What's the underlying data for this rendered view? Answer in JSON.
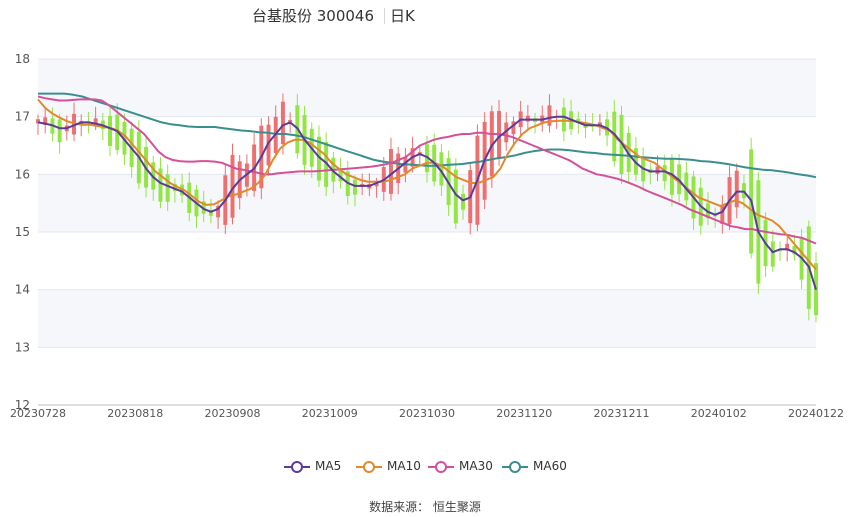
{
  "header": {
    "stock_name": "台基股份",
    "stock_code": "300046",
    "period_tab": "日K"
  },
  "source": {
    "label": "数据来源：",
    "name": "恒生聚源"
  },
  "colors": {
    "up": "#ee6f6f",
    "down": "#91e644",
    "ma5": "#5b3a9c",
    "ma10": "#e08a2c",
    "ma30": "#d5509a",
    "ma60": "#3a8e8e"
  },
  "chart_data": {
    "type": "candlestick",
    "ylim": [
      12,
      18
    ],
    "yticks": [
      12,
      13,
      14,
      15,
      16,
      17,
      18
    ],
    "xticks": [
      "20230728",
      "20230818",
      "20230908",
      "20231009",
      "20231030",
      "20231120",
      "20231211",
      "20240102",
      "20240122"
    ],
    "series": [
      {
        "name": "MA5",
        "key": "ma5",
        "values": [
          16.9,
          16.88,
          16.85,
          16.8,
          16.8,
          16.85,
          16.9,
          16.9,
          16.88,
          16.85,
          16.8,
          16.75,
          16.6,
          16.45,
          16.3,
          16.1,
          15.95,
          15.85,
          15.8,
          15.75,
          15.7,
          15.6,
          15.5,
          15.4,
          15.35,
          15.4,
          15.55,
          15.75,
          15.9,
          16.0,
          16.1,
          16.3,
          16.55,
          16.7,
          16.85,
          16.9,
          16.8,
          16.6,
          16.45,
          16.3,
          16.2,
          16.05,
          15.95,
          15.85,
          15.8,
          15.8,
          15.8,
          15.85,
          15.9,
          16.0,
          16.1,
          16.2,
          16.3,
          16.35,
          16.3,
          16.2,
          16.05,
          15.85,
          15.65,
          15.55,
          15.6,
          15.9,
          16.25,
          16.5,
          16.65,
          16.75,
          16.85,
          16.95,
          16.95,
          16.95,
          16.95,
          16.98,
          17.0,
          17.0,
          16.95,
          16.9,
          16.85,
          16.85,
          16.85,
          16.8,
          16.7,
          16.55,
          16.35,
          16.2,
          16.1,
          16.05,
          16.05,
          16.05,
          16.0,
          15.9,
          15.75,
          15.6,
          15.45,
          15.35,
          15.3,
          15.35,
          15.55,
          15.7,
          15.7,
          15.55,
          15.0,
          14.8,
          14.65,
          14.7,
          14.7,
          14.65,
          14.55,
          14.4,
          14.0
        ]
      },
      {
        "name": "MA10",
        "key": "ma10",
        "values": [
          17.3,
          17.15,
          17.05,
          16.98,
          16.92,
          16.88,
          16.86,
          16.86,
          16.84,
          16.82,
          16.8,
          16.75,
          16.65,
          16.5,
          16.35,
          16.2,
          16.05,
          15.95,
          15.85,
          15.78,
          15.72,
          15.62,
          15.52,
          15.47,
          15.48,
          15.55,
          15.62,
          15.65,
          15.7,
          15.75,
          15.85,
          16.0,
          16.25,
          16.45,
          16.55,
          16.6,
          16.6,
          16.55,
          16.45,
          16.35,
          16.2,
          16.1,
          16.0,
          15.95,
          15.9,
          15.87,
          15.87,
          15.87,
          15.9,
          15.95,
          16.0,
          16.1,
          16.15,
          16.2,
          16.2,
          16.15,
          16.05,
          15.95,
          15.9,
          15.85,
          15.85,
          15.9,
          15.95,
          16.1,
          16.35,
          16.55,
          16.7,
          16.8,
          16.85,
          16.9,
          16.92,
          16.93,
          16.93,
          16.92,
          16.9,
          16.88,
          16.85,
          16.8,
          16.75,
          16.6,
          16.5,
          16.4,
          16.3,
          16.25,
          16.2,
          16.1,
          16.0,
          15.9,
          15.8,
          15.7,
          15.6,
          15.55,
          15.5,
          15.45,
          15.5,
          15.55,
          15.5,
          15.4,
          15.3,
          15.25,
          15.2,
          15.1,
          14.95,
          14.8,
          14.65,
          14.5,
          14.35
        ]
      },
      {
        "name": "MA30",
        "key": "ma30",
        "values": [
          17.35,
          17.32,
          17.3,
          17.28,
          17.28,
          17.29,
          17.3,
          17.3,
          17.3,
          17.28,
          17.2,
          17.1,
          17.0,
          16.9,
          16.8,
          16.7,
          16.55,
          16.4,
          16.3,
          16.25,
          16.23,
          16.22,
          16.22,
          16.23,
          16.23,
          16.22,
          16.2,
          16.15,
          16.1,
          16.08,
          16.05,
          16.03,
          16.0,
          16.0,
          16.02,
          16.03,
          16.04,
          16.05,
          16.05,
          16.05,
          16.06,
          16.07,
          16.08,
          16.09,
          16.1,
          16.11,
          16.12,
          16.13,
          16.15,
          16.17,
          16.2,
          16.25,
          16.3,
          16.4,
          16.5,
          16.55,
          16.6,
          16.63,
          16.65,
          16.68,
          16.7,
          16.7,
          16.72,
          16.72,
          16.7,
          16.7,
          16.68,
          16.65,
          16.6,
          16.55,
          16.5,
          16.45,
          16.4,
          16.35,
          16.3,
          16.25,
          16.18,
          16.1,
          16.05,
          16.0,
          15.98,
          15.95,
          15.92,
          15.88,
          15.83,
          15.78,
          15.72,
          15.67,
          15.62,
          15.57,
          15.52,
          15.47,
          15.4,
          15.35,
          15.3,
          15.25,
          15.2,
          15.15,
          15.1,
          15.08,
          15.05,
          15.05,
          15.02,
          15.0,
          14.98,
          14.96,
          14.95,
          14.92,
          14.9,
          14.85,
          14.8
        ]
      },
      {
        "name": "MA60",
        "key": "ma60",
        "values": [
          17.4,
          17.4,
          17.4,
          17.4,
          17.38,
          17.35,
          17.3,
          17.25,
          17.2,
          17.15,
          17.1,
          17.05,
          17.0,
          16.95,
          16.9,
          16.87,
          16.85,
          16.83,
          16.82,
          16.82,
          16.82,
          16.8,
          16.78,
          16.76,
          16.75,
          16.73,
          16.72,
          16.7,
          16.7,
          16.68,
          16.65,
          16.6,
          16.55,
          16.5,
          16.45,
          16.4,
          16.35,
          16.3,
          16.25,
          16.22,
          16.2,
          16.18,
          16.17,
          16.16,
          16.15,
          16.15,
          16.16,
          16.17,
          16.18,
          16.2,
          16.22,
          16.25,
          16.28,
          16.3,
          16.33,
          16.37,
          16.4,
          16.42,
          16.43,
          16.43,
          16.42,
          16.4,
          16.38,
          16.37,
          16.35,
          16.34,
          16.33,
          16.32,
          16.3,
          16.29,
          16.28,
          16.27,
          16.27,
          16.26,
          16.25,
          16.23,
          16.22,
          16.2,
          16.18,
          16.15,
          16.12,
          16.1,
          16.08,
          16.07,
          16.05,
          16.03,
          16.0,
          15.98,
          15.95
        ]
      }
    ]
  }
}
